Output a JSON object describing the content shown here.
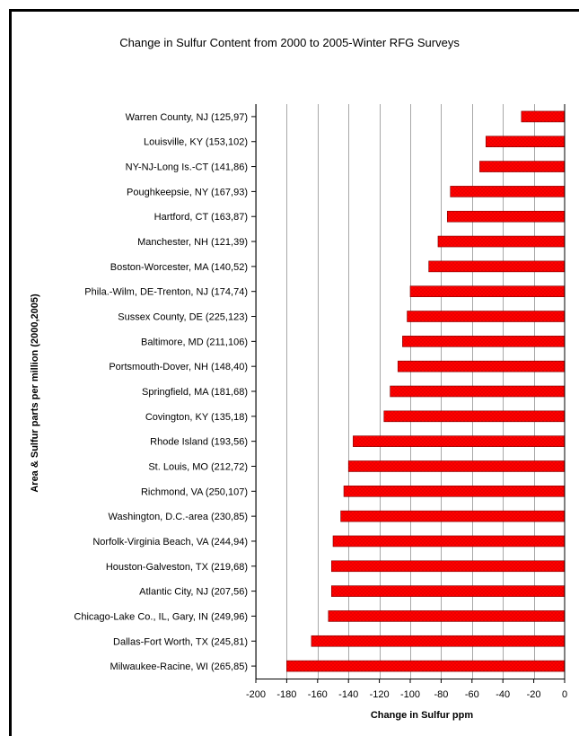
{
  "chart_data": {
    "type": "bar",
    "orientation": "horizontal",
    "title": "Change in Sulfur Content from 2000 to 2005-Winter RFG Surveys",
    "xlabel": "Change in Sulfur ppm",
    "ylabel": "Area & Sulfur parts per million (2000,2005)",
    "xlim": [
      -200,
      0
    ],
    "xticks": [
      -200,
      -180,
      -160,
      -140,
      -120,
      -100,
      -80,
      -60,
      -40,
      -20,
      0
    ],
    "grid": "vertical",
    "bar_color": "#ff0000",
    "categories": [
      "Warren County, NJ (125,97)",
      "Louisville, KY (153,102)",
      "NY-NJ-Long Is.-CT (141,86)",
      "Poughkeepsie, NY (167,93)",
      "Hartford, CT (163,87)",
      "Manchester, NH (121,39)",
      "Boston-Worcester, MA (140,52)",
      "Phila.-Wilm, DE-Trenton, NJ (174,74)",
      "Sussex County, DE (225,123)",
      "Baltimore, MD (211,106)",
      "Portsmouth-Dover, NH (148,40)",
      "Springfield, MA (181,68)",
      "Covington, KY (135,18)",
      "Rhode Island (193,56)",
      "St. Louis, MO (212,72)",
      "Richmond, VA (250,107)",
      "Washington, D.C.-area (230,85)",
      "Norfolk-Virginia Beach, VA (244,94)",
      "Houston-Galveston, TX (219,68)",
      "Atlantic City, NJ (207,56)",
      "Chicago-Lake Co., IL, Gary, IN (249,96)",
      "Dallas-Fort Worth, TX (245,81)",
      "Milwaukee-Racine, WI (265,85)"
    ],
    "values": [
      -28,
      -51,
      -55,
      -74,
      -76,
      -82,
      -88,
      -100,
      -102,
      -105,
      -108,
      -113,
      -117,
      -137,
      -140,
      -143,
      -145,
      -150,
      -151,
      -151,
      -153,
      -164,
      -180
    ]
  }
}
